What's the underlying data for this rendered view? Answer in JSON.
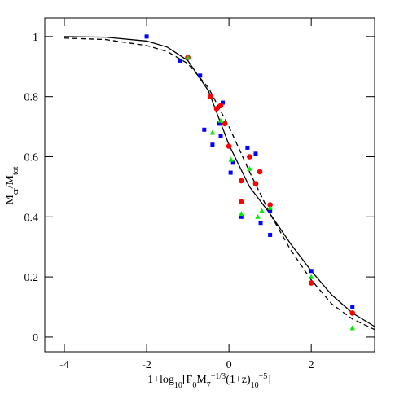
{
  "chart_data": {
    "type": "scatter",
    "xlabel": [
      {
        "text": "1+log"
      },
      {
        "text": "10",
        "shift": "sub"
      },
      {
        "text": "[F"
      },
      {
        "text": "0",
        "shift": "sub"
      },
      {
        "text": "M"
      },
      {
        "text": "7",
        "shift": "sub"
      },
      {
        "text": "−1/3",
        "shift": "super"
      },
      {
        "text": "(1+z)"
      },
      {
        "text": "10",
        "shift": "sub"
      },
      {
        "text": "−5",
        "shift": "super"
      },
      {
        "text": "]"
      }
    ],
    "ylabel": [
      {
        "text": "M"
      },
      {
        "text": "cr",
        "shift": "sub"
      },
      {
        "text": "/M"
      },
      {
        "text": "tot",
        "shift": "sub"
      }
    ],
    "xlim": [
      -4.475,
      3.54
    ],
    "ylim": [
      -0.049,
      1.062
    ],
    "xticks": [
      -4,
      -2,
      0,
      2
    ],
    "yticks": [
      0,
      0.2,
      0.4,
      0.6,
      0.8,
      1
    ],
    "series": [
      {
        "line": "solid",
        "color": "#000000",
        "x": [
          -4,
          -3,
          -2,
          -1.5,
          -1,
          -0.5,
          0,
          0.5,
          1,
          1.5,
          2,
          2.5,
          3,
          3.54
        ],
        "values": [
          1.0,
          0.998,
          0.985,
          0.965,
          0.92,
          0.82,
          0.64,
          0.5,
          0.41,
          0.31,
          0.22,
          0.14,
          0.08,
          0.035
        ]
      },
      {
        "line": "dashed",
        "color": "#000000",
        "x": [
          -4,
          -3,
          -2,
          -1.5,
          -1,
          -0.5,
          0,
          0.5,
          1,
          1.5,
          2,
          2.5,
          3,
          3.54
        ],
        "values": [
          0.995,
          0.99,
          0.97,
          0.95,
          0.91,
          0.83,
          0.7,
          0.55,
          0.41,
          0.29,
          0.19,
          0.11,
          0.06,
          0.025
        ]
      },
      {
        "marker": "square",
        "color": "#0000ff",
        "x": [
          -2,
          -1.2,
          -0.7,
          -0.6,
          -0.4,
          -0.25,
          -0.2,
          -0.15,
          0.04,
          0.1,
          0.3,
          0.45,
          0.65,
          0.77,
          1.0,
          1.0,
          2.0,
          3.0
        ],
        "values": [
          1.0,
          0.92,
          0.87,
          0.69,
          0.64,
          0.71,
          0.67,
          0.78,
          0.547,
          0.58,
          0.4,
          0.63,
          0.61,
          0.38,
          0.34,
          0.42,
          0.22,
          0.1
        ]
      },
      {
        "marker": "circle",
        "color": "#ff0000",
        "x": [
          -1,
          -0.45,
          -0.3,
          -0.2,
          -0.1,
          0,
          0.3,
          0.3,
          0.5,
          0.65,
          0.75,
          1.0,
          2.0,
          3.0
        ],
        "values": [
          0.93,
          0.8,
          0.76,
          0.77,
          0.71,
          0.635,
          0.52,
          0.45,
          0.6,
          0.51,
          0.55,
          0.44,
          0.18,
          0.08
        ]
      },
      {
        "marker": "triangle",
        "color": "#00ee00",
        "x": [
          -1,
          -0.4,
          -0.2,
          0.05,
          0.3,
          0.5,
          0.7,
          0.8,
          1.0,
          2.0,
          3.0
        ],
        "values": [
          0.93,
          0.68,
          0.72,
          0.59,
          0.41,
          0.56,
          0.4,
          0.42,
          0.43,
          0.2,
          0.03
        ]
      }
    ]
  }
}
